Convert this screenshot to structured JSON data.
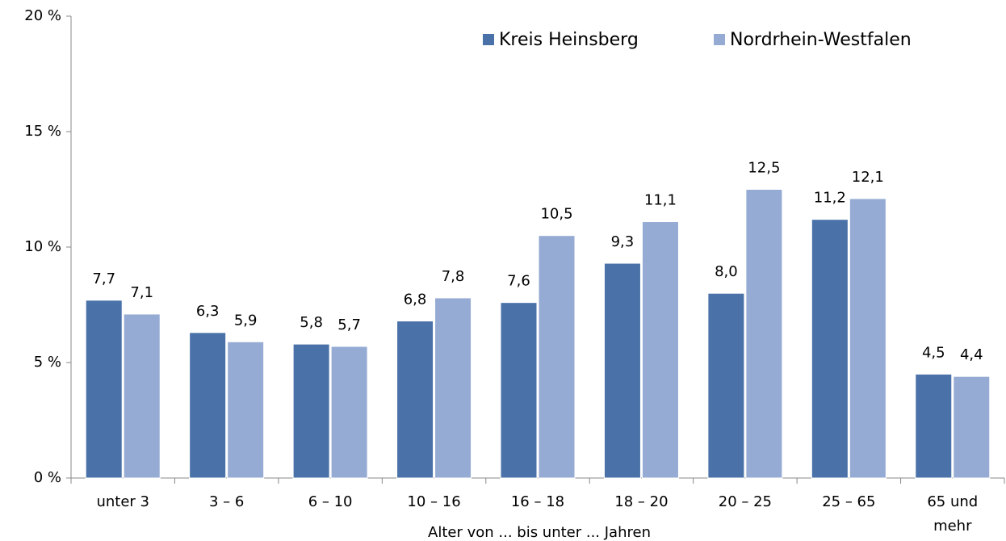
{
  "chart_data": {
    "type": "bar",
    "x_label": "Alter von ... bis unter ... Jahren",
    "categories": [
      "unter 3",
      "3 – 6",
      "6 – 10",
      "10 – 16",
      "16 – 18",
      "18 – 20",
      "20 – 25",
      "25 – 65",
      "65 und\nmehr"
    ],
    "series": [
      {
        "name": "Kreis Heinsberg",
        "color": "#4a72a8",
        "values": [
          7.7,
          6.3,
          5.8,
          6.8,
          7.6,
          9.3,
          8.0,
          11.2,
          4.5
        ],
        "value_labels": [
          "7,7",
          "6,3",
          "5,8",
          "6,8",
          "7,6",
          "9,3",
          "8,0",
          "11,2",
          "4,5"
        ]
      },
      {
        "name": "Nordrhein-Westfalen",
        "color": "#95abd3",
        "values": [
          7.1,
          5.9,
          5.7,
          7.8,
          10.5,
          11.1,
          12.5,
          12.1,
          4.4
        ],
        "value_labels": [
          "7,1",
          "5,9",
          "5,7",
          "7,8",
          "10,5",
          "11,1",
          "12,5",
          "12,1",
          "4,4"
        ]
      }
    ],
    "ylim": [
      0,
      20
    ],
    "yticks": [
      {
        "value": 0,
        "label": "0 %"
      },
      {
        "value": 5,
        "label": "5 %"
      },
      {
        "value": 10,
        "label": "10 %"
      },
      {
        "value": 15,
        "label": "15 %"
      },
      {
        "value": 20,
        "label": "20 %"
      }
    ],
    "legend": "top-right"
  }
}
